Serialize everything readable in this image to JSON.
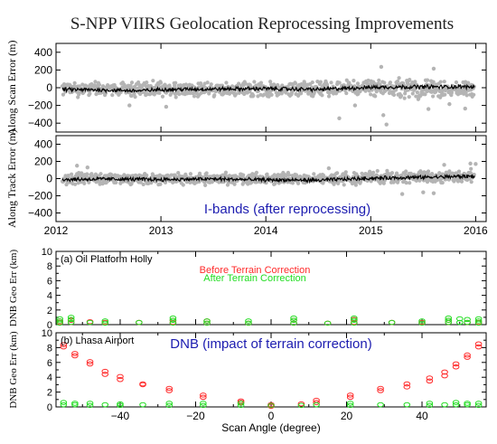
{
  "title": "S-NPP VIIRS Geolocation Reprocessing Improvements",
  "chart_data": [
    {
      "type": "scatter",
      "ylabel": "Along Scan Error (m)",
      "xlim": [
        2012.0,
        2016.1
      ],
      "ylim": [
        -500,
        500
      ],
      "yticks": [
        -400,
        -200,
        0,
        200,
        400
      ],
      "xticks": [
        2012,
        2013,
        2014,
        2015,
        2016
      ],
      "xticks_labeled": false,
      "series": [
        {
          "role": "daily_scatter",
          "color": "#b4b4b4",
          "band": [
            [
              2012.05,
              -110,
              75
            ],
            [
              2013.0,
              -110,
              75
            ],
            [
              2014.0,
              -110,
              75
            ],
            [
              2014.7,
              -110,
              90
            ],
            [
              2015.0,
              -110,
              120
            ],
            [
              2015.5,
              -130,
              100
            ],
            [
              2016.0,
              -110,
              80
            ]
          ],
          "outliers": [
            [
              2015.15,
              -415
            ],
            [
              2014.7,
              -345
            ],
            [
              2015.12,
              -310
            ],
            [
              2015.55,
              -240
            ],
            [
              2015.6,
              215
            ],
            [
              2015.1,
              235
            ],
            [
              2015.75,
              -185
            ],
            [
              2014.85,
              -200
            ],
            [
              2013.05,
              -215
            ],
            [
              2012.7,
              -200
            ],
            [
              2015.9,
              -235
            ]
          ]
        },
        {
          "role": "mean_line",
          "color": "#000000",
          "profile": [
            [
              2012.05,
              -20
            ],
            [
              2012.4,
              -25
            ],
            [
              2012.8,
              -35
            ],
            [
              2013.0,
              -20
            ],
            [
              2013.5,
              -15
            ],
            [
              2014.0,
              -10
            ],
            [
              2014.5,
              -20
            ],
            [
              2015.0,
              5
            ],
            [
              2015.4,
              10
            ],
            [
              2015.8,
              10
            ],
            [
              2016.0,
              10
            ]
          ]
        }
      ]
    },
    {
      "type": "scatter",
      "ylabel": "Along Track Error (m)",
      "annotation": "I-bands (after reprocessing)",
      "xlim": [
        2012.0,
        2016.1
      ],
      "ylim": [
        -500,
        500
      ],
      "yticks": [
        -400,
        -200,
        0,
        200,
        400
      ],
      "xticks": [
        2012,
        2013,
        2014,
        2015,
        2016
      ],
      "xticklabels": [
        "2012",
        "2013",
        "2014",
        "2015",
        "2016"
      ],
      "series": [
        {
          "role": "daily_scatter",
          "color": "#b4b4b4",
          "band": [
            [
              2012.05,
              -80,
              75
            ],
            [
              2013.0,
              -70,
              70
            ],
            [
              2014.0,
              -75,
              70
            ],
            [
              2014.6,
              -75,
              70
            ],
            [
              2015.0,
              -70,
              90
            ],
            [
              2015.5,
              -60,
              100
            ],
            [
              2016.0,
              -50,
              110
            ]
          ],
          "outliers": [
            [
              2012.2,
              150
            ],
            [
              2012.3,
              130
            ],
            [
              2015.3,
              -180
            ],
            [
              2015.5,
              -160
            ],
            [
              2015.6,
              -170
            ],
            [
              2015.7,
              160
            ],
            [
              2015.95,
              175
            ],
            [
              2016.0,
              170
            ],
            [
              2014.6,
              120
            ]
          ]
        },
        {
          "role": "mean_line",
          "color": "#000000",
          "profile": [
            [
              2012.05,
              -10
            ],
            [
              2012.5,
              -5
            ],
            [
              2013.0,
              -10
            ],
            [
              2013.5,
              -5
            ],
            [
              2014.0,
              -15
            ],
            [
              2014.5,
              -20
            ],
            [
              2015.0,
              5
            ],
            [
              2015.5,
              15
            ],
            [
              2016.0,
              30
            ]
          ]
        }
      ]
    },
    {
      "type": "scatter",
      "panel_label": "(a) Oil Platform Holly",
      "ylabel": "DNB Geo Err (km)",
      "xlim": [
        -57,
        57
      ],
      "ylim": [
        0,
        10
      ],
      "yticks": [
        0,
        2,
        4,
        6,
        8,
        10
      ],
      "xticks": [
        -40,
        -20,
        0,
        20,
        40
      ],
      "series": [
        {
          "name": "Before Terrain Correction",
          "color": "#ff2b2b",
          "points": [
            [
              -56,
              0.3
            ],
            [
              -56,
              0.5
            ],
            [
              -53,
              0.3
            ],
            [
              -53,
              0.6
            ],
            [
              -48,
              0.4
            ],
            [
              -44,
              0.3
            ],
            [
              -35,
              0.3
            ],
            [
              -26,
              0.3
            ],
            [
              -26,
              0.6
            ],
            [
              -17,
              0.2
            ],
            [
              -17,
              0.5
            ],
            [
              -6,
              0.2
            ],
            [
              6,
              0.2
            ],
            [
              6,
              0.6
            ],
            [
              15,
              0.2
            ],
            [
              22,
              0.3
            ],
            [
              22,
              0.7
            ],
            [
              32,
              0.3
            ],
            [
              40,
              0.3
            ],
            [
              47,
              0.3
            ],
            [
              47,
              0.6
            ],
            [
              52,
              0.3
            ],
            [
              55,
              0.3
            ]
          ]
        },
        {
          "name": "After Terrain Correction",
          "color": "#22dd22",
          "points": [
            [
              -56,
              0.2
            ],
            [
              -56,
              0.5
            ],
            [
              -56,
              0.8
            ],
            [
              -53,
              0.3
            ],
            [
              -53,
              0.7
            ],
            [
              -53,
              1.0
            ],
            [
              -48,
              0.3
            ],
            [
              -44,
              0.2
            ],
            [
              -44,
              0.5
            ],
            [
              -35,
              0.3
            ],
            [
              -26,
              0.2
            ],
            [
              -26,
              0.6
            ],
            [
              -26,
              0.9
            ],
            [
              -17,
              0.2
            ],
            [
              -17,
              0.5
            ],
            [
              -6,
              0.2
            ],
            [
              -6,
              0.5
            ],
            [
              6,
              0.2
            ],
            [
              6,
              0.6
            ],
            [
              6,
              0.9
            ],
            [
              15,
              0.2
            ],
            [
              22,
              0.2
            ],
            [
              22,
              0.6
            ],
            [
              22,
              0.9
            ],
            [
              32,
              0.3
            ],
            [
              40,
              0.2
            ],
            [
              40,
              0.5
            ],
            [
              47,
              0.3
            ],
            [
              47,
              0.6
            ],
            [
              47,
              0.9
            ],
            [
              50,
              0.3
            ],
            [
              50,
              0.8
            ],
            [
              52,
              0.3
            ],
            [
              52,
              0.7
            ],
            [
              55,
              0.2
            ],
            [
              55,
              0.5
            ],
            [
              55,
              0.8
            ]
          ]
        }
      ]
    },
    {
      "type": "scatter",
      "panel_label": "(b) Lhasa Airport",
      "annotation": "DNB (impact of terrain correction)",
      "ylabel": "DNB Geo Err (km)",
      "xlabel": "Scan Angle (degree)",
      "xlim": [
        -57,
        57
      ],
      "ylim": [
        0,
        10
      ],
      "yticks": [
        0,
        2,
        4,
        6,
        8,
        10
      ],
      "xticks": [
        -40,
        -20,
        0,
        20,
        40
      ],
      "xticklabels": [
        "−40",
        "−20",
        "0",
        "20",
        "40"
      ],
      "series": [
        {
          "name": "Before Terrain Correction",
          "color": "#ff2b2b",
          "points": [
            [
              -55,
              8.1
            ],
            [
              -55,
              8.4
            ],
            [
              -52,
              6.9
            ],
            [
              -52,
              7.2
            ],
            [
              -48,
              5.8
            ],
            [
              -48,
              6.1
            ],
            [
              -44,
              4.4
            ],
            [
              -44,
              4.8
            ],
            [
              -40,
              3.7
            ],
            [
              -40,
              4.1
            ],
            [
              -34,
              3.0
            ],
            [
              -34,
              3.1
            ],
            [
              -27,
              2.2
            ],
            [
              -27,
              2.5
            ],
            [
              -18,
              1.3
            ],
            [
              -18,
              1.6
            ],
            [
              -8,
              0.6
            ],
            [
              -8,
              0.8
            ],
            [
              0,
              0.1
            ],
            [
              0,
              0.3
            ],
            [
              8,
              0.4
            ],
            [
              12,
              0.6
            ],
            [
              12,
              0.9
            ],
            [
              21,
              1.3
            ],
            [
              21,
              1.6
            ],
            [
              29,
              2.2
            ],
            [
              29,
              2.5
            ],
            [
              36,
              2.7
            ],
            [
              36,
              3.1
            ],
            [
              42,
              3.5
            ],
            [
              42,
              3.9
            ],
            [
              46,
              4.2
            ],
            [
              46,
              4.7
            ],
            [
              49,
              5.4
            ],
            [
              49,
              5.8
            ],
            [
              52,
              6.7
            ],
            [
              52,
              7.0
            ],
            [
              55,
              8.1
            ],
            [
              55,
              8.5
            ]
          ]
        },
        {
          "name": "After Terrain Correction",
          "color": "#22dd22",
          "points": [
            [
              -55,
              0.3
            ],
            [
              -55,
              0.6
            ],
            [
              -52,
              0.3
            ],
            [
              -52,
              0.5
            ],
            [
              -48,
              0.2
            ],
            [
              -48,
              0.5
            ],
            [
              -44,
              0.3
            ],
            [
              -40,
              0.2
            ],
            [
              -40,
              0.4
            ],
            [
              -34,
              0.3
            ],
            [
              -27,
              0.2
            ],
            [
              -27,
              0.5
            ],
            [
              -18,
              0.2
            ],
            [
              -18,
              0.5
            ],
            [
              -8,
              0.2
            ],
            [
              -8,
              0.5
            ],
            [
              0,
              0.2
            ],
            [
              8,
              0.2
            ],
            [
              12,
              0.3
            ],
            [
              21,
              0.2
            ],
            [
              21,
              0.5
            ],
            [
              29,
              0.3
            ],
            [
              36,
              0.3
            ],
            [
              42,
              0.2
            ],
            [
              42,
              0.5
            ],
            [
              46,
              0.3
            ],
            [
              49,
              0.3
            ],
            [
              49,
              0.6
            ],
            [
              52,
              0.3
            ],
            [
              52,
              0.5
            ],
            [
              55,
              0.2
            ],
            [
              55,
              0.5
            ]
          ]
        }
      ]
    }
  ]
}
